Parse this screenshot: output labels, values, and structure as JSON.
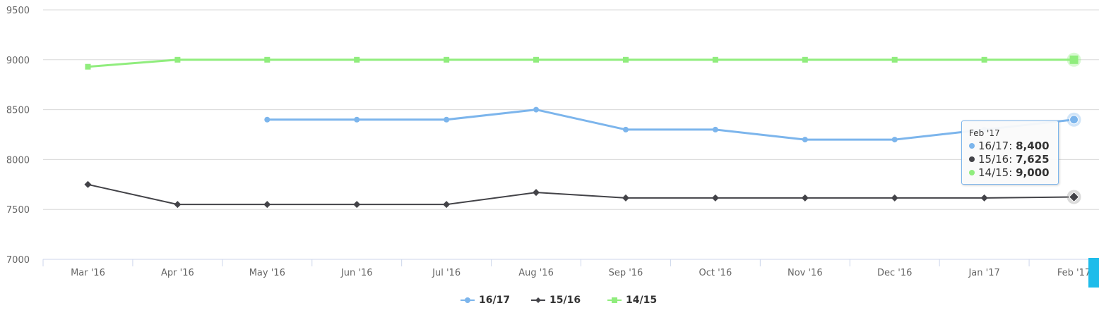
{
  "chart_data": {
    "type": "line",
    "categories": [
      "Mar '16",
      "Apr '16",
      "May '16",
      "Jun '16",
      "Jul '16",
      "Aug '16",
      "Sep '16",
      "Oct '16",
      "Nov '16",
      "Dec '16",
      "Jan '17",
      "Feb '17"
    ],
    "yticks": [
      "7000",
      "7500",
      "8000",
      "8500",
      "9000",
      "9500"
    ],
    "ylim": [
      7000,
      9500
    ],
    "grid": true,
    "legend_position": "bottom-center",
    "series": [
      {
        "name": "16/17",
        "color": "#7cb5ec",
        "marker": "circle",
        "values": [
          null,
          null,
          8400,
          8400,
          8400,
          8500,
          8300,
          8300,
          8200,
          8200,
          8300,
          8400
        ]
      },
      {
        "name": "15/16",
        "color": "#434348",
        "marker": "diamond",
        "values": [
          7750,
          7550,
          7550,
          7550,
          7550,
          7670,
          7615,
          7615,
          7615,
          7615,
          7615,
          7625
        ]
      },
      {
        "name": "14/15",
        "color": "#90ed7d",
        "marker": "square",
        "values": [
          8930,
          9000,
          9000,
          9000,
          9000,
          9000,
          9000,
          9000,
          9000,
          9000,
          9000,
          9000
        ]
      }
    ]
  },
  "tooltip": {
    "header": "Feb '17",
    "rows": [
      {
        "label": "16/17: ",
        "value": "8,400",
        "color": "#7cb5ec"
      },
      {
        "label": "15/16: ",
        "value": "7,625",
        "color": "#434348"
      },
      {
        "label": "14/15: ",
        "value": "9,000",
        "color": "#90ed7d"
      }
    ]
  }
}
